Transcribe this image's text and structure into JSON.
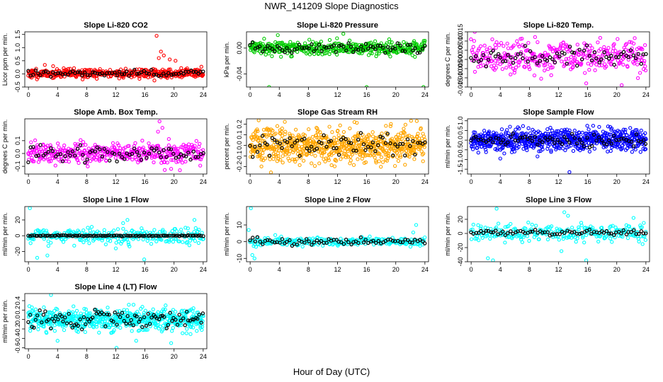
{
  "figure": {
    "title": "NWR_141209  Slope Diagnostics",
    "xlabel": "Hour of Day (UTC)"
  },
  "chart_data": [
    {
      "id": "co2",
      "type": "scatter",
      "title": "Slope Li-820 CO2",
      "ylabel": "Licor ppm per min.",
      "xlim": [
        -0.5,
        24.5
      ],
      "ylim": [
        -0.5,
        1.6
      ],
      "xticks": [
        0,
        4,
        8,
        12,
        16,
        20,
        24
      ],
      "yticks": [
        -0.5,
        0,
        0.5,
        1,
        1.5
      ],
      "ytick_labels": [
        "-0.5",
        "0.0",
        "0.5",
        "1.0",
        "1.5"
      ],
      "series": [
        {
          "color": "#ff0000",
          "n": 420,
          "center": 0.02,
          "spread": 0.09,
          "range": [
            -0.25,
            0.38
          ],
          "seed": 11,
          "outliers": [
            [
              17.6,
              1.45
            ],
            [
              18.2,
              0.85
            ],
            [
              18.6,
              0.7
            ],
            [
              19.4,
              0.55
            ],
            [
              17.9,
              0.6
            ],
            [
              20.2,
              0.5
            ],
            [
              17.3,
              -0.25
            ]
          ]
        },
        {
          "color": "#000000",
          "n": 72,
          "center": 0.02,
          "spread": 0.07,
          "range": [
            -0.2,
            0.2
          ],
          "seed": 12
        }
      ]
    },
    {
      "id": "pressure",
      "type": "scatter",
      "title": "Slope Li-820 Pressure",
      "ylabel": "kPa per min.",
      "xlim": [
        -0.5,
        24.5
      ],
      "ylim": [
        -0.06,
        0.025
      ],
      "xticks": [
        0,
        4,
        8,
        12,
        16,
        20,
        24
      ],
      "yticks": [
        -0.04,
        0.0
      ],
      "ytick_labels": [
        "-0.04",
        "0.00"
      ],
      "series": [
        {
          "color": "#00cc00",
          "n": 420,
          "center": 0.0,
          "spread": 0.005,
          "range": [
            -0.014,
            0.02
          ],
          "seed": 21,
          "outliers": [
            [
              2.6,
              -0.06
            ],
            [
              16.0,
              -0.06
            ],
            [
              23.8,
              -0.06
            ],
            [
              12.8,
              0.022
            ],
            [
              3.8,
              0.02
            ]
          ]
        },
        {
          "color": "#000000",
          "n": 72,
          "center": 0.0,
          "spread": 0.004,
          "range": [
            -0.012,
            0.012
          ],
          "seed": 22
        }
      ]
    },
    {
      "id": "temp",
      "type": "scatter",
      "title": "Slope Li-820 Temp.",
      "ylabel": "degrees C per min.",
      "xlim": [
        -0.5,
        24.5
      ],
      "ylim": [
        -0.015,
        0.015
      ],
      "xticks": [
        0,
        4,
        8,
        12,
        16,
        20,
        24
      ],
      "yticks": [
        -0.015,
        -0.01,
        -0.005,
        0,
        0.005,
        0.01,
        0.015
      ],
      "ytick_labels": [
        "-0.015",
        "-0.010",
        "-0.005",
        "0.000",
        "0.005",
        "0.010",
        "0.015"
      ],
      "series": [
        {
          "color": "#ff00ff",
          "n": 360,
          "center": 0.0015,
          "spread": 0.0045,
          "range": [
            -0.014,
            0.015
          ],
          "seed": 31,
          "outliers": [
            [
              0.5,
              0.015
            ],
            [
              15.8,
              -0.013
            ]
          ]
        },
        {
          "color": "#000000",
          "n": 72,
          "center": 0.0015,
          "spread": 0.003,
          "range": [
            -0.006,
            0.008
          ],
          "seed": 32
        }
      ]
    },
    {
      "id": "ambbox",
      "type": "scatter",
      "title": "Slope Amb. Box Temp.",
      "ylabel": "degrees C per min.",
      "xlim": [
        -0.5,
        24.5
      ],
      "ylim": [
        -0.16,
        0.27
      ],
      "xticks": [
        0,
        4,
        8,
        12,
        16,
        20,
        24
      ],
      "yticks": [
        -0.1,
        0.0,
        0.1
      ],
      "ytick_labels": [
        "-0.1",
        "0.0",
        "0.1"
      ],
      "series": [
        {
          "color": "#ff00ff",
          "n": 420,
          "center": 0.0,
          "spread": 0.04,
          "range": [
            -0.13,
            0.13
          ],
          "seed": 41,
          "outliers": [
            [
              18.0,
              0.25
            ],
            [
              18.4,
              0.2
            ],
            [
              17.8,
              0.17
            ],
            [
              19.6,
              -0.12
            ],
            [
              20.8,
              -0.13
            ]
          ]
        },
        {
          "color": "#000000",
          "n": 72,
          "center": 0.0,
          "spread": 0.035,
          "range": [
            -0.09,
            0.08
          ],
          "seed": 42
        }
      ]
    },
    {
      "id": "rh",
      "type": "scatter",
      "title": "Slope Gas Stream RH",
      "ylabel": "percent per min.",
      "xlim": [
        -0.5,
        24.5
      ],
      "ylim": [
        -0.27,
        0.25
      ],
      "xticks": [
        0,
        4,
        8,
        12,
        16,
        20,
        24
      ],
      "yticks": [
        -0.2,
        -0.1,
        0.0,
        0.1,
        0.2
      ],
      "ytick_labels": [
        "-0.2",
        "-0.1",
        "0.0",
        "0.1",
        "0.2"
      ],
      "series": [
        {
          "color": "#ffa500",
          "n": 700,
          "center": 0.0,
          "spread": 0.08,
          "range": [
            -0.26,
            0.24
          ],
          "seed": 51
        },
        {
          "color": "#000000",
          "n": 72,
          "center": 0.0,
          "spread": 0.05,
          "range": [
            -0.12,
            0.12
          ],
          "seed": 52
        }
      ]
    },
    {
      "id": "sampleflow",
      "type": "scatter",
      "title": "Slope Sample Flow",
      "ylabel": "ml/min per min.",
      "xlim": [
        -0.5,
        24.5
      ],
      "ylim": [
        -1.75,
        1.1
      ],
      "xticks": [
        0,
        4,
        8,
        12,
        16,
        20,
        24
      ],
      "yticks": [
        -1.5,
        -1.0,
        -0.5,
        0.0,
        0.5,
        1.0
      ],
      "ytick_labels": [
        "-1.5",
        "-1.0",
        "-0.5",
        "0.0",
        "0.5",
        "1.0"
      ],
      "series": [
        {
          "color": "#0000ff",
          "n": 700,
          "center": 0.0,
          "spread": 0.28,
          "range": [
            -0.9,
            0.95
          ],
          "seed": 61,
          "outliers": [
            [
              13.5,
              -1.65
            ],
            [
              4.0,
              -0.95
            ]
          ]
        },
        {
          "color": "#000000",
          "n": 72,
          "center": 0.0,
          "spread": 0.15,
          "range": [
            -0.4,
            0.45
          ],
          "seed": 62
        }
      ]
    },
    {
      "id": "line1",
      "type": "scatter",
      "title": "Slope Line 1 Flow",
      "ylabel": "ml/min per min.",
      "xlim": [
        -0.5,
        24.5
      ],
      "ylim": [
        -33,
        37
      ],
      "xticks": [
        0,
        4,
        8,
        12,
        16,
        20,
        24
      ],
      "yticks": [
        -20,
        0,
        20
      ],
      "ytick_labels": [
        "-20",
        "0",
        "20"
      ],
      "series": [
        {
          "color": "#00ffff",
          "n": 260,
          "center": 0.0,
          "spread": 5,
          "range": [
            -30,
            35
          ],
          "seed": 71,
          "outliers": [
            [
              0.2,
              35
            ],
            [
              1.2,
              -28
            ],
            [
              2.6,
              -25
            ],
            [
              13.6,
              20
            ],
            [
              13.0,
              16
            ],
            [
              12.0,
              -16
            ],
            [
              15.9,
              -30
            ],
            [
              22.8,
              20
            ]
          ]
        },
        {
          "color": "#000000",
          "n": 96,
          "center": 0.0,
          "spread": 0.3,
          "range": [
            -1,
            1
          ],
          "seed": 72
        }
      ]
    },
    {
      "id": "line2",
      "type": "scatter",
      "title": "Slope Line 2 Flow",
      "ylabel": "ml/min per min.",
      "xlim": [
        -0.5,
        24.5
      ],
      "ylim": [
        -12,
        21
      ],
      "xticks": [
        0,
        4,
        8,
        12,
        16,
        20,
        24
      ],
      "yticks": [
        -10,
        0,
        10
      ],
      "ytick_labels": [
        "-10",
        "0",
        "10"
      ],
      "series": [
        {
          "color": "#00ffff",
          "n": 240,
          "center": 0.0,
          "spread": 1.3,
          "range": [
            -4,
            4
          ],
          "seed": 81,
          "outliers": [
            [
              0.1,
              20
            ],
            [
              0.3,
              -8
            ],
            [
              0.6,
              -10
            ],
            [
              -0.2,
              7
            ],
            [
              22.8,
              10
            ],
            [
              22.4,
              5.5
            ]
          ]
        },
        {
          "color": "#000000",
          "n": 72,
          "center": 0.0,
          "spread": 1.0,
          "range": [
            -2.5,
            3
          ],
          "seed": 82
        }
      ]
    },
    {
      "id": "line3",
      "type": "scatter",
      "title": "Slope Line 3 Flow",
      "ylabel": "ml/min per min.",
      "xlim": [
        -0.5,
        24.5
      ],
      "ylim": [
        -40,
        38
      ],
      "xticks": [
        0,
        4,
        8,
        12,
        16,
        20,
        24
      ],
      "yticks": [
        -40,
        -20,
        0,
        20
      ],
      "ytick_labels": [
        "-40",
        "-20",
        "0",
        "20"
      ],
      "series": [
        {
          "color": "#00ffff",
          "n": 260,
          "center": 0.0,
          "spread": 6,
          "range": [
            -38,
            36
          ],
          "seed": 91,
          "outliers": [
            [
              3.5,
              35
            ],
            [
              2.3,
              -35
            ],
            [
              3.0,
              -38
            ],
            [
              12.8,
              30
            ],
            [
              13.3,
              25
            ],
            [
              15.8,
              -38
            ],
            [
              22.3,
              22
            ],
            [
              12.4,
              -25
            ]
          ]
        },
        {
          "color": "#000000",
          "n": 72,
          "center": 1.0,
          "spread": 2,
          "range": [
            -5,
            7
          ],
          "seed": 92
        }
      ]
    },
    {
      "id": "line4",
      "type": "scatter",
      "title": "Slope Line 4 (LT) Flow",
      "ylabel": "ml/min per min.",
      "xlim": [
        -0.5,
        24.5
      ],
      "ylim": [
        -0.62,
        0.55
      ],
      "xticks": [
        0,
        4,
        8,
        12,
        16,
        20,
        24
      ],
      "yticks": [
        -0.6,
        -0.4,
        -0.2,
        0.0,
        0.2,
        0.4
      ],
      "ytick_labels": [
        "-0.6",
        "-0.4",
        "-0.2",
        "0.0",
        "0.2",
        "0.4"
      ],
      "series": [
        {
          "color": "#00ffff",
          "n": 650,
          "center": 0.0,
          "spread": 0.11,
          "range": [
            -0.5,
            0.52
          ],
          "seed": 101,
          "outliers": [
            [
              3.1,
              0.52
            ],
            [
              12.1,
              -0.6
            ],
            [
              4.0,
              -0.45
            ],
            [
              19.6,
              -0.5
            ],
            [
              14.8,
              -0.45
            ]
          ]
        },
        {
          "color": "#000000",
          "n": 96,
          "center": 0.0,
          "spread": 0.09,
          "range": [
            -0.3,
            0.26
          ],
          "seed": 102
        }
      ]
    }
  ]
}
